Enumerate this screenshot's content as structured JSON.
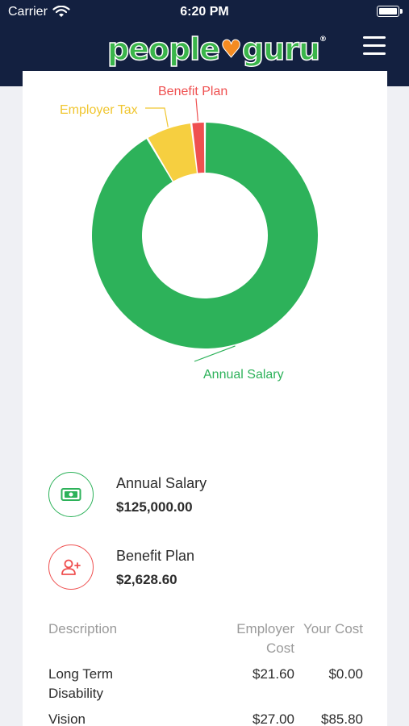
{
  "status_bar": {
    "carrier": "Carrier",
    "time": "6:20 PM"
  },
  "header": {
    "logo_people": "people",
    "logo_guru": "guru",
    "logo_tm": "®"
  },
  "colors": {
    "salary": "#2db25a",
    "employer_tax": "#f6cf40",
    "benefit_plan": "#ef5050",
    "header_bg": "#132040"
  },
  "chart_data": {
    "type": "pie",
    "categories": [
      "Annual Salary",
      "Employer Tax",
      "Benefit Plan"
    ],
    "values": [
      125000.0,
      9000.0,
      2628.6
    ],
    "colors": [
      "#2db25a",
      "#f6cf40",
      "#ef5050"
    ],
    "labels": {
      "annual_salary": "Annual Salary",
      "employer_tax": "Employer Tax",
      "benefit_plan": "Benefit Plan"
    }
  },
  "summary": {
    "salary": {
      "label": "Annual Salary",
      "value": "$125,000.00",
      "icon": "money-icon"
    },
    "benefit": {
      "label": "Benefit Plan",
      "value": "$2,628.60",
      "icon": "add-user-icon"
    }
  },
  "table": {
    "headers": {
      "description": "Description",
      "employer_cost_1": "Employer",
      "employer_cost_2": "Cost",
      "your_cost": "Your Cost"
    },
    "rows": [
      {
        "desc_1": "Long Term",
        "desc_2": "Disability",
        "employer": "$21.60",
        "yours": "$0.00"
      },
      {
        "desc_1": "Vision",
        "desc_2": "",
        "employer": "$27.00",
        "yours": "$85.80"
      }
    ]
  }
}
